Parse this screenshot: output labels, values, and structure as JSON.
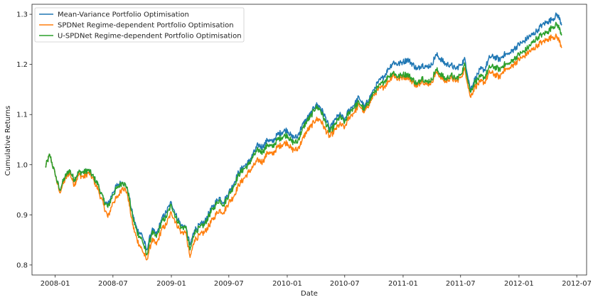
{
  "chart_data": {
    "type": "line",
    "title": "",
    "xlabel": "Date",
    "ylabel": "Cumulative Returns",
    "xlim": [
      "2007-10-20",
      "2012-08-01"
    ],
    "ylim": [
      0.78,
      1.32
    ],
    "x_ticks": [
      "2008-01",
      "2008-07",
      "2009-01",
      "2009-07",
      "2010-01",
      "2010-07",
      "2011-01",
      "2011-07",
      "2012-01",
      "2012-07"
    ],
    "y_ticks": [
      0.8,
      0.9,
      1.0,
      1.1,
      1.2,
      1.3
    ],
    "grid": false,
    "legend_position": "top-left",
    "x": [
      "2007-12-01",
      "2007-12-15",
      "2008-01-01",
      "2008-01-15",
      "2008-02-01",
      "2008-02-15",
      "2008-03-01",
      "2008-03-15",
      "2008-04-01",
      "2008-04-15",
      "2008-05-01",
      "2008-05-15",
      "2008-06-01",
      "2008-06-15",
      "2008-07-01",
      "2008-07-15",
      "2008-08-01",
      "2008-08-15",
      "2008-09-01",
      "2008-09-15",
      "2008-10-01",
      "2008-10-15",
      "2008-11-01",
      "2008-11-15",
      "2008-12-01",
      "2008-12-15",
      "2009-01-01",
      "2009-01-15",
      "2009-02-01",
      "2009-02-15",
      "2009-03-01",
      "2009-03-15",
      "2009-04-01",
      "2009-04-15",
      "2009-05-01",
      "2009-05-15",
      "2009-06-01",
      "2009-06-15",
      "2009-07-01",
      "2009-07-15",
      "2009-08-01",
      "2009-08-15",
      "2009-09-01",
      "2009-09-15",
      "2009-10-01",
      "2009-10-15",
      "2009-11-01",
      "2009-11-15",
      "2009-12-01",
      "2009-12-15",
      "2010-01-01",
      "2010-01-15",
      "2010-02-01",
      "2010-02-15",
      "2010-03-01",
      "2010-03-15",
      "2010-04-01",
      "2010-04-15",
      "2010-05-01",
      "2010-05-15",
      "2010-06-01",
      "2010-06-15",
      "2010-07-01",
      "2010-07-15",
      "2010-08-01",
      "2010-08-15",
      "2010-09-01",
      "2010-09-15",
      "2010-10-01",
      "2010-10-15",
      "2010-11-01",
      "2010-11-15",
      "2010-12-01",
      "2010-12-15",
      "2011-01-01",
      "2011-01-15",
      "2011-02-01",
      "2011-02-15",
      "2011-03-01",
      "2011-03-15",
      "2011-04-01",
      "2011-04-15",
      "2011-05-01",
      "2011-05-15",
      "2011-06-01",
      "2011-06-15",
      "2011-07-01",
      "2011-07-15",
      "2011-08-01",
      "2011-08-15",
      "2011-09-01",
      "2011-09-15",
      "2011-10-01",
      "2011-10-15",
      "2011-11-01",
      "2011-11-15",
      "2011-12-01",
      "2011-12-15",
      "2012-01-01",
      "2012-01-15",
      "2012-02-01",
      "2012-02-15",
      "2012-03-01",
      "2012-03-15",
      "2012-04-01",
      "2012-04-15",
      "2012-05-01",
      "2012-05-15"
    ],
    "series": [
      {
        "name": "Mean-Variance Portfolio Optimisation",
        "color": "#1f77b4",
        "values": [
          0.995,
          1.02,
          0.98,
          0.95,
          0.975,
          0.99,
          0.97,
          0.985,
          0.985,
          0.99,
          0.975,
          0.96,
          0.93,
          0.92,
          0.945,
          0.96,
          0.965,
          0.955,
          0.9,
          0.87,
          0.86,
          0.83,
          0.87,
          0.86,
          0.89,
          0.905,
          0.925,
          0.9,
          0.88,
          0.875,
          0.84,
          0.87,
          0.88,
          0.885,
          0.905,
          0.92,
          0.935,
          0.925,
          0.945,
          0.96,
          0.985,
          0.995,
          1.005,
          1.02,
          1.04,
          1.035,
          1.05,
          1.045,
          1.06,
          1.065,
          1.07,
          1.055,
          1.055,
          1.075,
          1.09,
          1.1,
          1.12,
          1.115,
          1.095,
          1.07,
          1.09,
          1.1,
          1.09,
          1.11,
          1.12,
          1.135,
          1.115,
          1.13,
          1.15,
          1.165,
          1.175,
          1.19,
          1.205,
          1.2,
          1.205,
          1.21,
          1.2,
          1.19,
          1.2,
          1.195,
          1.2,
          1.22,
          1.21,
          1.2,
          1.2,
          1.19,
          1.2,
          1.21,
          1.15,
          1.17,
          1.19,
          1.19,
          1.215,
          1.215,
          1.21,
          1.22,
          1.22,
          1.23,
          1.24,
          1.245,
          1.255,
          1.26,
          1.27,
          1.28,
          1.285,
          1.29,
          1.3,
          1.28
        ]
      },
      {
        "name": "SPDNet Regime-dependent Portfolio Optimisation",
        "color": "#ff7f0e",
        "values": [
          0.995,
          1.02,
          0.98,
          0.945,
          0.97,
          0.985,
          0.96,
          0.98,
          0.975,
          0.985,
          0.97,
          0.95,
          0.92,
          0.895,
          0.925,
          0.935,
          0.955,
          0.945,
          0.88,
          0.85,
          0.83,
          0.81,
          0.85,
          0.84,
          0.87,
          0.88,
          0.905,
          0.885,
          0.865,
          0.865,
          0.815,
          0.85,
          0.86,
          0.865,
          0.88,
          0.895,
          0.91,
          0.905,
          0.925,
          0.935,
          0.96,
          0.97,
          0.985,
          0.995,
          1.01,
          1.005,
          1.025,
          1.02,
          1.035,
          1.04,
          1.045,
          1.03,
          1.03,
          1.045,
          1.065,
          1.075,
          1.09,
          1.09,
          1.07,
          1.055,
          1.07,
          1.08,
          1.075,
          1.095,
          1.105,
          1.12,
          1.105,
          1.12,
          1.14,
          1.15,
          1.155,
          1.165,
          1.18,
          1.17,
          1.175,
          1.175,
          1.165,
          1.155,
          1.17,
          1.16,
          1.165,
          1.185,
          1.175,
          1.165,
          1.175,
          1.165,
          1.175,
          1.19,
          1.135,
          1.155,
          1.165,
          1.165,
          1.185,
          1.18,
          1.175,
          1.19,
          1.19,
          1.2,
          1.21,
          1.215,
          1.225,
          1.23,
          1.24,
          1.245,
          1.25,
          1.255,
          1.255,
          1.235
        ]
      },
      {
        "name": "U-SPDNet Regime-dependent Portfolio Optimisation",
        "color": "#2ca02c",
        "values": [
          0.995,
          1.02,
          0.98,
          0.95,
          0.975,
          0.99,
          0.97,
          0.985,
          0.985,
          0.99,
          0.975,
          0.96,
          0.93,
          0.915,
          0.94,
          0.955,
          0.965,
          0.955,
          0.895,
          0.865,
          0.85,
          0.82,
          0.865,
          0.855,
          0.885,
          0.895,
          0.92,
          0.895,
          0.875,
          0.875,
          0.83,
          0.865,
          0.875,
          0.88,
          0.9,
          0.915,
          0.93,
          0.92,
          0.94,
          0.955,
          0.98,
          0.99,
          1.0,
          1.015,
          1.03,
          1.025,
          1.04,
          1.035,
          1.05,
          1.055,
          1.06,
          1.045,
          1.045,
          1.065,
          1.085,
          1.095,
          1.115,
          1.11,
          1.085,
          1.065,
          1.08,
          1.095,
          1.085,
          1.105,
          1.115,
          1.125,
          1.11,
          1.125,
          1.145,
          1.155,
          1.165,
          1.175,
          1.185,
          1.175,
          1.18,
          1.18,
          1.17,
          1.16,
          1.175,
          1.165,
          1.17,
          1.19,
          1.18,
          1.17,
          1.18,
          1.17,
          1.18,
          1.2,
          1.145,
          1.165,
          1.175,
          1.175,
          1.195,
          1.195,
          1.19,
          1.2,
          1.2,
          1.21,
          1.22,
          1.225,
          1.235,
          1.245,
          1.255,
          1.26,
          1.265,
          1.275,
          1.28,
          1.26
        ]
      }
    ]
  }
}
